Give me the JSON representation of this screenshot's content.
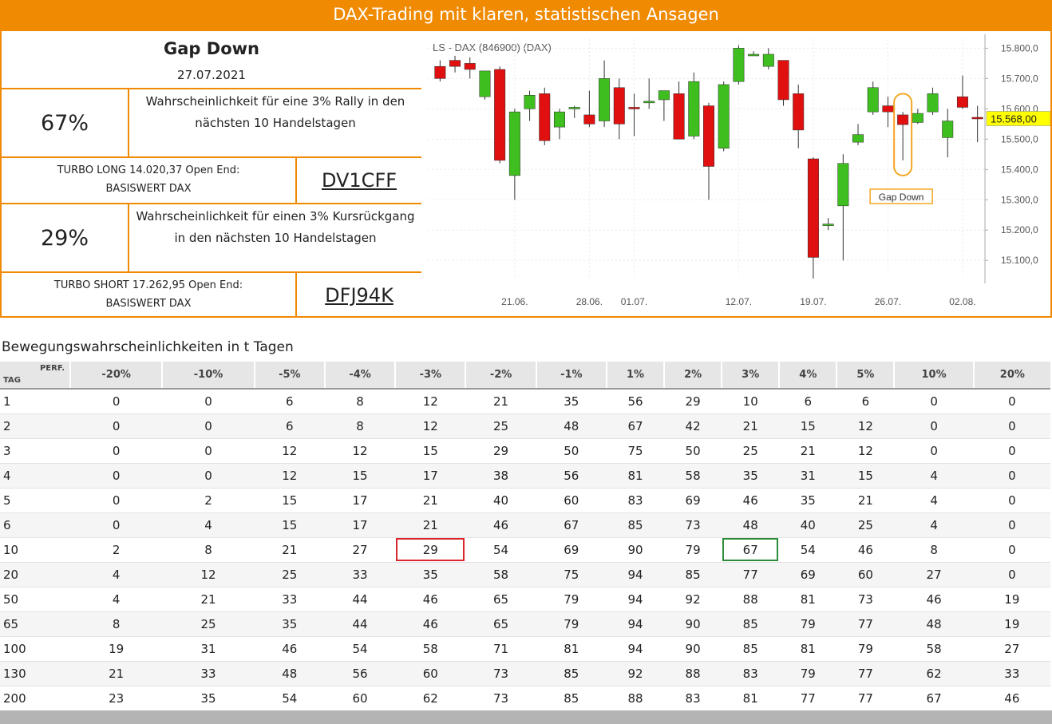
{
  "banner": {
    "title": "DAX-Trading mit klaren, statistischen Ansagen"
  },
  "signal": {
    "name": "Gap Down",
    "date": "27.07.2021"
  },
  "rally": {
    "percent": "67%",
    "text": "Wahrscheinlichkeit für eine 3% Rally in den nächsten 10 Handelstagen"
  },
  "long_product": {
    "line1": "TURBO LONG 14.020,37 Open End:",
    "line2": "BASISWERT DAX",
    "wkn": "DV1CFF"
  },
  "drop": {
    "percent": "29%",
    "text": "Wahrscheinlichkeit für einen 3% Kursrückgang in den nächsten 10 Handelstagen"
  },
  "short_product": {
    "line1": "TURBO SHORT 17.262,95 Open End:",
    "line2": "BASISWERT DAX",
    "wkn": "DFJ94K"
  },
  "chart_data": {
    "type": "candlestick",
    "title": "LS - DAX (846900) (DAX)",
    "y_ticks": [
      "15.800,0",
      "15.700,0",
      "15.600,0",
      "15.500,0",
      "15.400,0",
      "15.300,0",
      "15.200,0",
      "15.100,0"
    ],
    "y_tick_values": [
      15800,
      15700,
      15600,
      15500,
      15400,
      15300,
      15200,
      15100
    ],
    "ylim": [
      15040,
      15830
    ],
    "x_labels": [
      {
        "index": 5,
        "label": "21.06."
      },
      {
        "index": 10,
        "label": "28.06."
      },
      {
        "index": 13,
        "label": "01.07."
      },
      {
        "index": 20,
        "label": "12.07."
      },
      {
        "index": 25,
        "label": "19.07."
      },
      {
        "index": 30,
        "label": "26.07."
      },
      {
        "index": 35,
        "label": "02.08."
      }
    ],
    "last_price": {
      "label": "15.568,00",
      "value": 15568,
      "color": "#ffff00"
    },
    "annotation": {
      "label": "Gap Down",
      "index": 31,
      "color": "#f5a623"
    },
    "up_color": "#3fbf1f",
    "down_color": "#e01010",
    "candles": [
      {
        "o": 15740,
        "h": 15760,
        "l": 15690,
        "c": 15700
      },
      {
        "o": 15760,
        "h": 15775,
        "l": 15720,
        "c": 15740
      },
      {
        "o": 15750,
        "h": 15770,
        "l": 15700,
        "c": 15730
      },
      {
        "o": 15640,
        "h": 15720,
        "l": 15630,
        "c": 15725
      },
      {
        "o": 15730,
        "h": 15740,
        "l": 15420,
        "c": 15430
      },
      {
        "o": 15380,
        "h": 15600,
        "l": 15300,
        "c": 15590
      },
      {
        "o": 15600,
        "h": 15660,
        "l": 15560,
        "c": 15645
      },
      {
        "o": 15650,
        "h": 15670,
        "l": 15480,
        "c": 15495
      },
      {
        "o": 15540,
        "h": 15600,
        "l": 15500,
        "c": 15590
      },
      {
        "o": 15600,
        "h": 15610,
        "l": 15570,
        "c": 15605
      },
      {
        "o": 15580,
        "h": 15660,
        "l": 15540,
        "c": 15550
      },
      {
        "o": 15560,
        "h": 15760,
        "l": 15540,
        "c": 15700
      },
      {
        "o": 15670,
        "h": 15700,
        "l": 15500,
        "c": 15550
      },
      {
        "o": 15605,
        "h": 15650,
        "l": 15510,
        "c": 15600
      },
      {
        "o": 15620,
        "h": 15700,
        "l": 15600,
        "c": 15625
      },
      {
        "o": 15630,
        "h": 15660,
        "l": 15560,
        "c": 15660
      },
      {
        "o": 15650,
        "h": 15690,
        "l": 15500,
        "c": 15500
      },
      {
        "o": 15510,
        "h": 15720,
        "l": 15500,
        "c": 15690
      },
      {
        "o": 15610,
        "h": 15620,
        "l": 15300,
        "c": 15410
      },
      {
        "o": 15470,
        "h": 15690,
        "l": 15460,
        "c": 15680
      },
      {
        "o": 15690,
        "h": 15810,
        "l": 15680,
        "c": 15800
      },
      {
        "o": 15780,
        "h": 15790,
        "l": 15775,
        "c": 15780
      },
      {
        "o": 15740,
        "h": 15800,
        "l": 15730,
        "c": 15780
      },
      {
        "o": 15760,
        "h": 15760,
        "l": 15610,
        "c": 15630
      },
      {
        "o": 15650,
        "h": 15680,
        "l": 15470,
        "c": 15530
      },
      {
        "o": 15435,
        "h": 15440,
        "l": 15040,
        "c": 15110
      },
      {
        "o": 15220,
        "h": 15240,
        "l": 15200,
        "c": 15220
      },
      {
        "o": 15280,
        "h": 15450,
        "l": 15100,
        "c": 15420
      },
      {
        "o": 15490,
        "h": 15550,
        "l": 15480,
        "c": 15515
      },
      {
        "o": 15590,
        "h": 15690,
        "l": 15580,
        "c": 15670
      },
      {
        "o": 15610,
        "h": 15640,
        "l": 15540,
        "c": 15590
      },
      {
        "o": 15580,
        "h": 15590,
        "l": 15430,
        "c": 15548
      },
      {
        "o": 15555,
        "h": 15600,
        "l": 15550,
        "c": 15585
      },
      {
        "o": 15590,
        "h": 15670,
        "l": 15580,
        "c": 15650
      },
      {
        "o": 15505,
        "h": 15600,
        "l": 15440,
        "c": 15560
      },
      {
        "o": 15640,
        "h": 15710,
        "l": 15600,
        "c": 15605
      },
      {
        "o": 15572,
        "h": 15610,
        "l": 15490,
        "c": 15568
      }
    ]
  },
  "table": {
    "title": "Bewegungswahrscheinlichkeiten in t Tagen",
    "corner_perf": "PERF.",
    "corner_tag": "TAG",
    "columns": [
      "-20%",
      "-10%",
      "-5%",
      "-4%",
      "-3%",
      "-2%",
      "-1%",
      "1%",
      "2%",
      "3%",
      "4%",
      "5%",
      "10%",
      "20%"
    ],
    "rows": [
      {
        "tag": "1",
        "values": [
          "0",
          "0",
          "6",
          "8",
          "12",
          "21",
          "35",
          "56",
          "29",
          "10",
          "6",
          "6",
          "0",
          "0"
        ]
      },
      {
        "tag": "2",
        "values": [
          "0",
          "0",
          "6",
          "8",
          "12",
          "25",
          "48",
          "67",
          "42",
          "21",
          "15",
          "12",
          "0",
          "0"
        ]
      },
      {
        "tag": "3",
        "values": [
          "0",
          "0",
          "12",
          "12",
          "15",
          "29",
          "50",
          "75",
          "50",
          "25",
          "21",
          "12",
          "0",
          "0"
        ]
      },
      {
        "tag": "4",
        "values": [
          "0",
          "0",
          "12",
          "15",
          "17",
          "38",
          "56",
          "81",
          "58",
          "35",
          "31",
          "15",
          "4",
          "0"
        ]
      },
      {
        "tag": "5",
        "values": [
          "0",
          "2",
          "15",
          "17",
          "21",
          "40",
          "60",
          "83",
          "69",
          "46",
          "35",
          "21",
          "4",
          "0"
        ]
      },
      {
        "tag": "6",
        "values": [
          "0",
          "4",
          "15",
          "17",
          "21",
          "46",
          "67",
          "85",
          "73",
          "48",
          "40",
          "25",
          "4",
          "0"
        ]
      },
      {
        "tag": "10",
        "values": [
          "2",
          "8",
          "21",
          "27",
          "29",
          "54",
          "69",
          "90",
          "79",
          "67",
          "54",
          "46",
          "8",
          "0"
        ]
      },
      {
        "tag": "20",
        "values": [
          "4",
          "12",
          "25",
          "33",
          "35",
          "58",
          "75",
          "94",
          "85",
          "77",
          "69",
          "60",
          "27",
          "0"
        ]
      },
      {
        "tag": "50",
        "values": [
          "4",
          "21",
          "33",
          "44",
          "46",
          "65",
          "79",
          "94",
          "92",
          "88",
          "81",
          "73",
          "46",
          "19"
        ]
      },
      {
        "tag": "65",
        "values": [
          "8",
          "25",
          "35",
          "44",
          "46",
          "65",
          "79",
          "94",
          "90",
          "85",
          "79",
          "77",
          "48",
          "19"
        ]
      },
      {
        "tag": "100",
        "values": [
          "19",
          "31",
          "46",
          "54",
          "58",
          "71",
          "81",
          "94",
          "90",
          "85",
          "81",
          "79",
          "58",
          "27"
        ]
      },
      {
        "tag": "130",
        "values": [
          "21",
          "33",
          "48",
          "56",
          "60",
          "73",
          "85",
          "92",
          "88",
          "83",
          "79",
          "77",
          "62",
          "33"
        ]
      },
      {
        "tag": "200",
        "values": [
          "23",
          "35",
          "54",
          "60",
          "62",
          "73",
          "85",
          "88",
          "83",
          "81",
          "77",
          "77",
          "67",
          "46"
        ]
      }
    ],
    "highlights": [
      {
        "row": "10",
        "col": "-3%",
        "color": "red"
      },
      {
        "row": "10",
        "col": "3%",
        "color": "green"
      }
    ]
  }
}
